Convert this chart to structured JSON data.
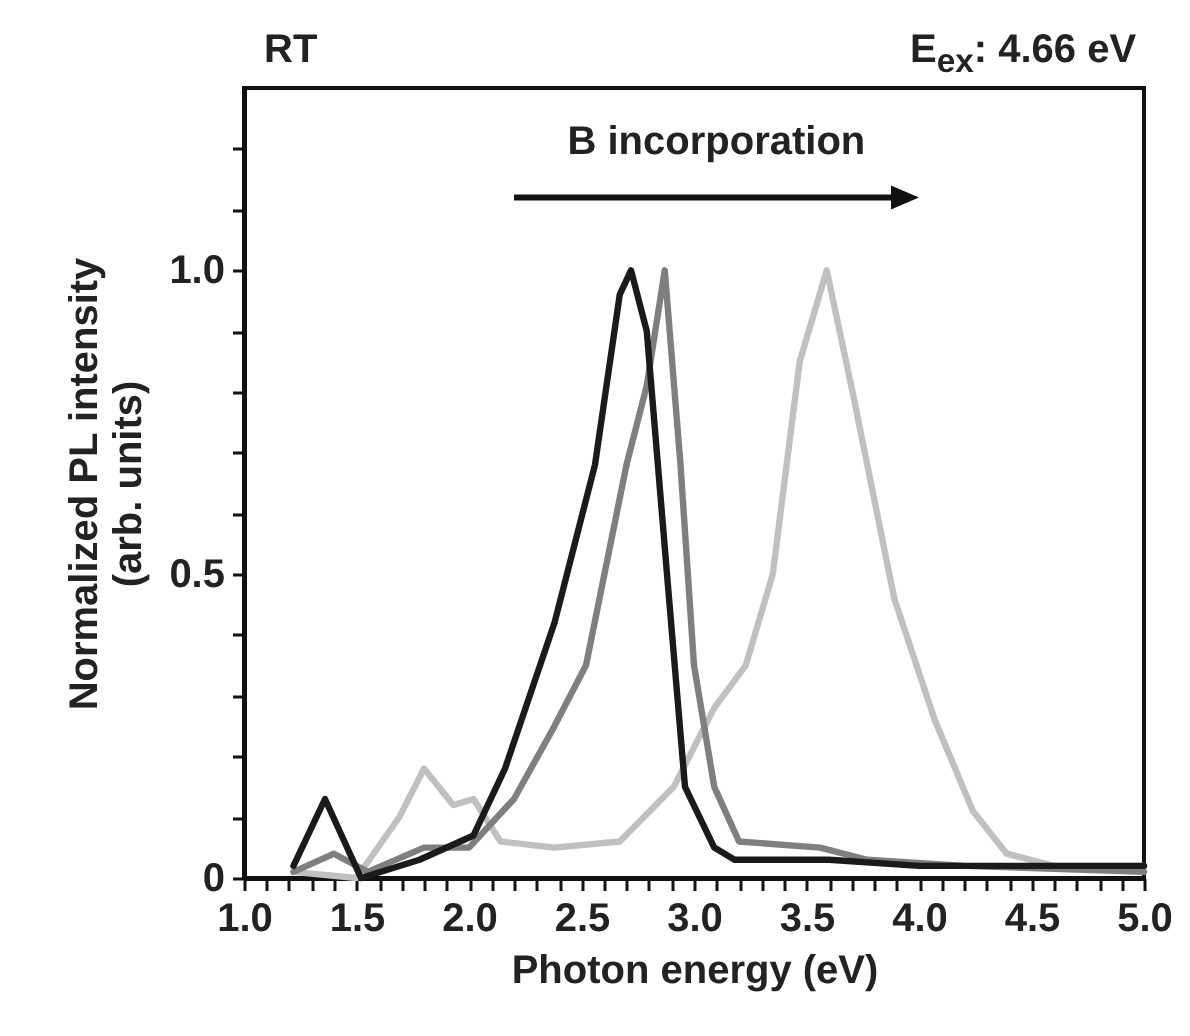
{
  "chart_data": {
    "type": "line",
    "xlabel": "Photon energy (eV)",
    "ylabel": "Normalized PL intensity\n(arb. units)",
    "annotations": [
      "RT",
      "E$_{ex}$: 4.66 eV",
      "B incorporation"
    ],
    "xlim": [
      1.0,
      5.0
    ],
    "xticks": [
      {
        "value": 1.0,
        "label": "1.0"
      },
      {
        "value": 1.1,
        "label": null
      },
      {
        "value": 1.2,
        "label": null
      },
      {
        "value": 1.3,
        "label": null
      },
      {
        "value": 1.4,
        "label": null
      },
      {
        "value": 1.5,
        "label": "1.5"
      },
      {
        "value": 1.6,
        "label": null
      },
      {
        "value": 1.7,
        "label": null
      },
      {
        "value": 1.8,
        "label": null
      },
      {
        "value": 1.9,
        "label": null
      },
      {
        "value": 2.0,
        "label": "2.0"
      },
      {
        "value": 2.1,
        "label": null
      },
      {
        "value": 2.2,
        "label": null
      },
      {
        "value": 2.3,
        "label": null
      },
      {
        "value": 2.4,
        "label": null
      },
      {
        "value": 2.5,
        "label": "2.5"
      },
      {
        "value": 2.6,
        "label": null
      },
      {
        "value": 2.7,
        "label": null
      },
      {
        "value": 2.8,
        "label": null
      },
      {
        "value": 2.9,
        "label": null
      },
      {
        "value": 3.0,
        "label": "3.0"
      },
      {
        "value": 3.1,
        "label": null
      },
      {
        "value": 3.2,
        "label": null
      },
      {
        "value": 3.3,
        "label": null
      },
      {
        "value": 3.4,
        "label": null
      },
      {
        "value": 3.5,
        "label": "3.5"
      },
      {
        "value": 3.6,
        "label": null
      },
      {
        "value": 3.7,
        "label": null
      },
      {
        "value": 3.8,
        "label": null
      },
      {
        "value": 3.9,
        "label": null
      },
      {
        "value": 4.0,
        "label": "4.0"
      },
      {
        "value": 4.1,
        "label": null
      },
      {
        "value": 4.2,
        "label": null
      },
      {
        "value": 4.3,
        "label": null
      },
      {
        "value": 4.4,
        "label": null
      },
      {
        "value": 4.5,
        "label": "4.5"
      },
      {
        "value": 4.6,
        "label": null
      },
      {
        "value": 4.7,
        "label": null
      },
      {
        "value": 4.8,
        "label": null
      },
      {
        "value": 4.9,
        "label": null
      },
      {
        "value": 5.0,
        "label": "5.0"
      }
    ],
    "ylim": [
      0,
      1.3
    ],
    "yticks": [
      0,
      {
        "value": 0.1,
        "label": null
      },
      {
        "value": 0.2,
        "label": null
      },
      {
        "value": 0.3,
        "label": null
      },
      {
        "value": 0.4,
        "label": null
      },
      0.5,
      {
        "value": 0.6,
        "label": null
      },
      {
        "value": 0.7,
        "label": null
      },
      {
        "value": 0.8,
        "label": null
      },
      {
        "value": 0.9,
        "label": null
      },
      {
        "value": 1.0,
        "label": "1.0"
      },
      {
        "value": 1.1,
        "label": null
      },
      {
        "value": 1.2,
        "label": null
      }
    ],
    "grid": false,
    "series": [
      {
        "color": "#c0c0c0",
        "x": [
          1.22,
          1.5,
          1.69,
          1.8,
          1.93,
          2.02,
          2.14,
          2.38,
          2.67,
          2.91,
          3.09,
          3.23,
          3.35,
          3.47,
          3.59,
          3.71,
          3.89,
          4.07,
          4.24,
          4.39,
          4.6,
          5.0
        ],
        "values": [
          0.01,
          0.0,
          0.1,
          0.18,
          0.12,
          0.13,
          0.06,
          0.05,
          0.06,
          0.15,
          0.28,
          0.35,
          0.5,
          0.85,
          1.0,
          0.79,
          0.46,
          0.26,
          0.11,
          0.04,
          0.02,
          0.02
        ]
      },
      {
        "color": "#7f7f7f",
        "x": [
          1.22,
          1.4,
          1.55,
          1.8,
          2.0,
          2.2,
          2.38,
          2.52,
          2.7,
          2.79,
          2.87,
          2.94,
          3.0,
          3.09,
          3.2,
          3.56,
          3.77,
          4.2,
          5.0
        ],
        "values": [
          0.01,
          0.04,
          0.01,
          0.05,
          0.05,
          0.13,
          0.25,
          0.35,
          0.68,
          0.81,
          1.0,
          0.68,
          0.35,
          0.15,
          0.06,
          0.05,
          0.03,
          0.02,
          0.01
        ]
      },
      {
        "color": "#1a1a1a",
        "x": [
          1.22,
          1.36,
          1.52,
          1.78,
          2.02,
          2.16,
          2.38,
          2.56,
          2.67,
          2.72,
          2.79,
          2.88,
          2.96,
          3.09,
          3.18,
          3.6,
          4.0,
          4.5,
          5.0
        ],
        "values": [
          0.02,
          0.13,
          0.0,
          0.03,
          0.07,
          0.18,
          0.42,
          0.68,
          0.96,
          1.0,
          0.9,
          0.5,
          0.15,
          0.05,
          0.03,
          0.03,
          0.02,
          0.02,
          0.02
        ]
      }
    ]
  }
}
